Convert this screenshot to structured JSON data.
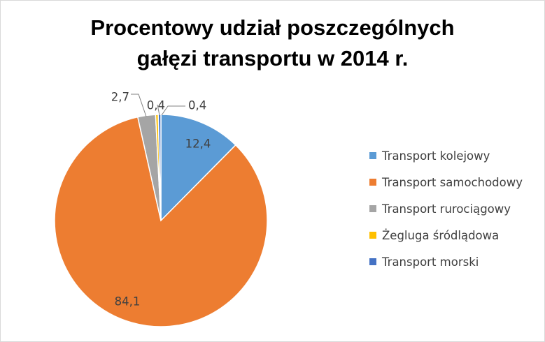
{
  "chart_data": {
    "type": "pie",
    "title_lines": [
      "Procentowy udział poszczególnych",
      "gałęzi transportu w 2014 r."
    ],
    "categories": [
      "Transport kolejowy",
      "Transport samochodowy",
      "Transport rurociągowy",
      "Żegluga śródlądowa",
      "Transport morski"
    ],
    "values": [
      12.4,
      84.1,
      2.7,
      0.4,
      0.4
    ],
    "labels": [
      "12,4",
      "84,1",
      "2,7",
      "0,4",
      "0,4"
    ],
    "colors": [
      "#5b9bd5",
      "#ed7d31",
      "#a5a5a5",
      "#ffc000",
      "#4472c4"
    ],
    "legend_position": "right"
  }
}
